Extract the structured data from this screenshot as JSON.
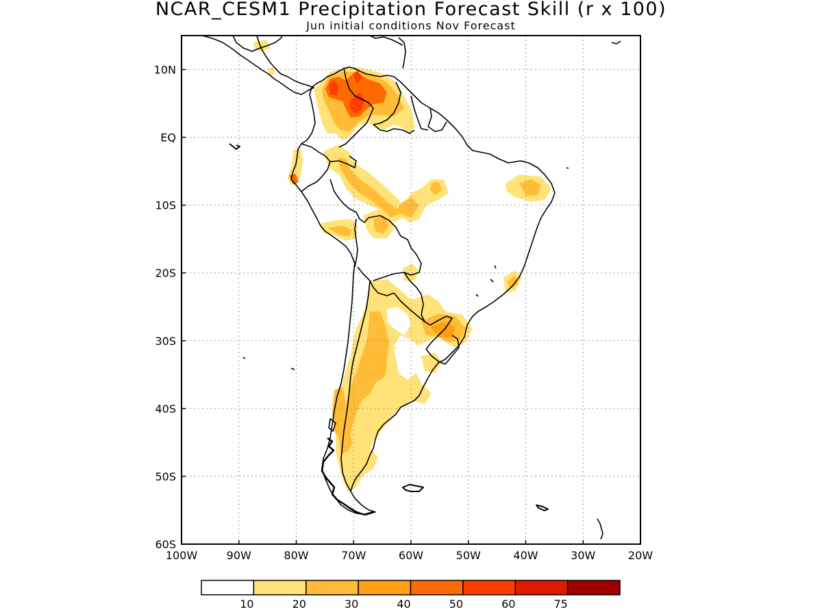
{
  "header": {
    "title": "NCAR_CESM1 Precipitation Forecast Skill (r x 100)",
    "subtitle": "Jun initial conditions  Nov Forecast"
  },
  "axes": {
    "lon_ticks": [
      "100W",
      "90W",
      "80W",
      "70W",
      "60W",
      "50W",
      "40W",
      "30W",
      "20W"
    ],
    "lat_ticks": [
      "10N",
      "EQ",
      "10S",
      "20S",
      "30S",
      "40S",
      "50S",
      "60S"
    ],
    "lon_range": [
      -100,
      -20
    ],
    "lat_range": [
      -60,
      15
    ]
  },
  "colorbar": {
    "levels": [
      "10",
      "20",
      "30",
      "40",
      "50",
      "60",
      "75"
    ],
    "colors": [
      "#ffffff",
      "#ffe278",
      "#ffbc36",
      "#ffa010",
      "#ff6a00",
      "#ff3c00",
      "#e01a00",
      "#a00000"
    ]
  },
  "chart_data": {
    "type": "heatmap",
    "title": "NCAR_CESM1 Precipitation Forecast Skill (r x 100)",
    "subtitle": "Jun initial conditions  Nov Forecast",
    "xlim": [
      -100,
      -20
    ],
    "ylim": [
      -60,
      15
    ],
    "grid": true,
    "regions": [
      {
        "lon": -69,
        "lat": 8,
        "value": 52
      },
      {
        "lon": -74,
        "lat": 9,
        "value": 48
      },
      {
        "lon": -71,
        "lat": 6,
        "value": 50
      },
      {
        "lon": -66,
        "lat": 8,
        "value": 35
      },
      {
        "lon": -80.5,
        "lat": -5.5,
        "value": 52
      },
      {
        "lon": -73,
        "lat": -2,
        "value": 25
      },
      {
        "lon": -67,
        "lat": -6,
        "value": 25
      },
      {
        "lon": -60,
        "lat": -9,
        "value": 28
      },
      {
        "lon": -56,
        "lat": -7,
        "value": 20
      },
      {
        "lon": -38,
        "lat": -6.5,
        "value": 25
      },
      {
        "lon": -66,
        "lat": -12,
        "value": 25
      },
      {
        "lon": -73,
        "lat": -13,
        "value": 20
      },
      {
        "lon": -41,
        "lat": -20.5,
        "value": 20
      },
      {
        "lon": -54,
        "lat": -28,
        "value": 30
      },
      {
        "lon": -66,
        "lat": -31,
        "value": 28
      },
      {
        "lon": -68,
        "lat": -37,
        "value": 25
      },
      {
        "lon": -71,
        "lat": -45,
        "value": 28
      },
      {
        "lon": -61,
        "lat": -20,
        "value": 15
      },
      {
        "lon": -63,
        "lat": -33,
        "value": 20
      },
      {
        "lon": -57,
        "lat": -34,
        "value": 15
      }
    ]
  }
}
